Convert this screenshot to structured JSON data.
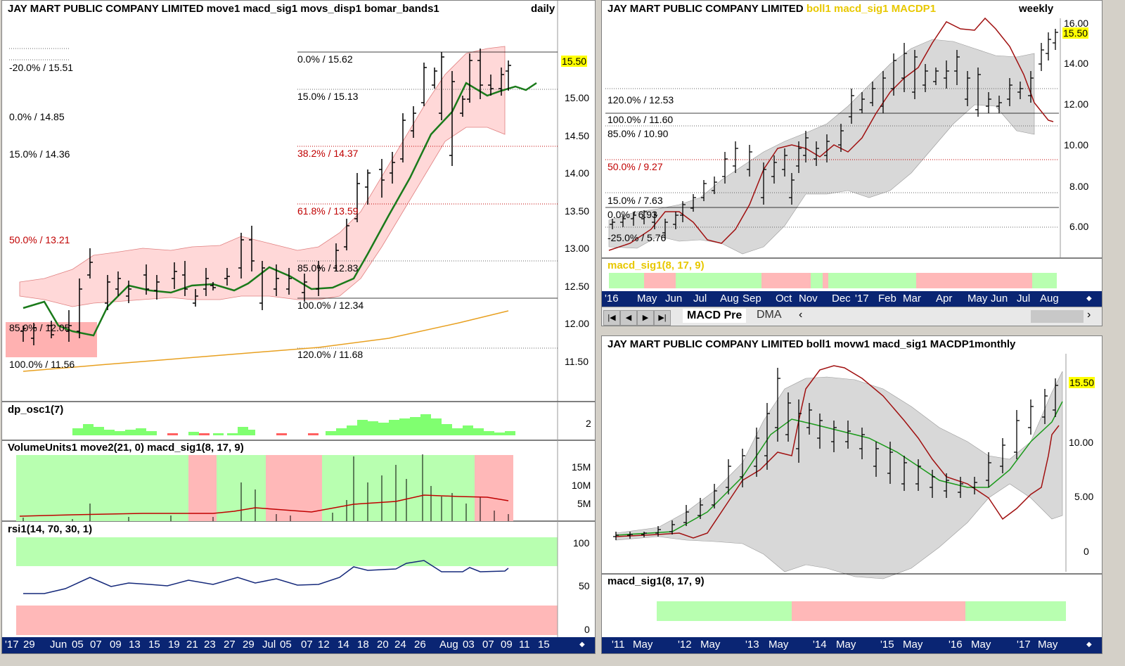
{
  "daily": {
    "title": "JAY MART PUBLIC COMPANY LIMITED move1 macd_sig1 movs_disp1 bomar_bands1",
    "timeframe": "daily",
    "current_price": "15.50",
    "price_ticks": [
      "15.00",
      "14.50",
      "14.00",
      "13.50",
      "13.00",
      "12.50",
      "12.00",
      "11.50"
    ],
    "fib_labels": [
      {
        "text": "-20.0% / 15.51",
        "color": "black"
      },
      {
        "text": "0.0% / 14.85",
        "color": "black"
      },
      {
        "text": "15.0% / 14.36",
        "color": "black"
      },
      {
        "text": "50.0% / 13.21",
        "color": "red"
      },
      {
        "text": "85.0% / 12.05",
        "color": "black"
      },
      {
        "text": "100.0% / 11.56",
        "color": "black"
      },
      {
        "text": "0.0% / 15.62",
        "color": "black"
      },
      {
        "text": "15.0% / 15.13",
        "color": "black"
      },
      {
        "text": "38.2% / 14.37",
        "color": "red"
      },
      {
        "text": "61.8% / 13.59",
        "color": "red"
      },
      {
        "text": "85.0% / 12.83",
        "color": "black"
      },
      {
        "text": "100.0% / 12.34",
        "color": "black"
      },
      {
        "text": "120.0% / 11.68",
        "color": "black"
      }
    ],
    "osc_label": "dp_osc1(7)",
    "osc_tick": "2",
    "volume_label": "VolumeUnits1 move2(21, 0) macd_sig1(8, 17, 9)",
    "volume_ticks": [
      "15M",
      "10M",
      "5M"
    ],
    "rsi_label": "rsi1(14, 70, 30, 1)",
    "rsi_ticks": [
      "100",
      "50",
      "0"
    ],
    "date_axis": [
      "'17",
      "29",
      "Jun",
      "05",
      "07",
      "09",
      "13",
      "15",
      "19",
      "21",
      "23",
      "27",
      "29",
      "Jul",
      "05",
      "07",
      "12",
      "14",
      "18",
      "20",
      "24",
      "26",
      "Aug",
      "03",
      "07",
      "09",
      "11",
      "15"
    ],
    "scroll_icon": "scroll-arrow-icon"
  },
  "weekly": {
    "title_main": "JAY MART PUBLIC COMPANY LIMITED",
    "title_yellow": "boll1 macd_sig1 MACDP1",
    "timeframe": "weekly",
    "current_price": "15.50",
    "price_ticks": [
      "16.00",
      "14.00",
      "12.00",
      "10.00",
      "8.00",
      "6.00"
    ],
    "fib_labels": [
      {
        "text": "120.0% / 12.53",
        "color": "black"
      },
      {
        "text": "100.0% / 11.60",
        "color": "black"
      },
      {
        "text": "85.0% / 10.90",
        "color": "black"
      },
      {
        "text": "50.0% / 9.27",
        "color": "red"
      },
      {
        "text": "15.0% / 7.63",
        "color": "black"
      },
      {
        "text": "0.0% / 6.93",
        "color": "black"
      },
      {
        "text": "-25.0% / 5.76",
        "color": "black"
      }
    ],
    "macd_label": "macd_sig1(8, 17, 9)",
    "date_axis": [
      "'16",
      "May",
      "Jun",
      "Jul",
      "Aug",
      "Sep",
      "Oct",
      "Nov",
      "Dec",
      "'17",
      "Feb",
      "Mar",
      "Apr",
      "May",
      "Jun",
      "Jul",
      "Aug"
    ],
    "tabs": [
      "MACD Pre",
      "DMA"
    ],
    "nav_buttons": [
      "first-icon",
      "prev-icon",
      "next-icon",
      "last-icon"
    ],
    "scroll_left": "‹"
  },
  "monthly": {
    "title": "JAY MART PUBLIC COMPANY LIMITED boll1 movw1 macd_sig1 MACDP1monthly",
    "current_price": "15.50",
    "price_ticks": [
      "10.00",
      "5.00",
      "0"
    ],
    "macd_label": "macd_sig1(8, 17, 9)",
    "date_axis": [
      "'11",
      "May",
      "'12",
      "May",
      "'13",
      "May",
      "'14",
      "May",
      "'15",
      "May",
      "'16",
      "May",
      "'17",
      "May"
    ]
  },
  "colors": {
    "accent_green": "#1a7a1a",
    "band_fill": "#ffd8d8",
    "up_zone": "#b8ffb0",
    "down_zone": "#ffb8b8",
    "axis_bg": "#0a2573",
    "ma_orange": "#e8a020",
    "macd_red": "#c00000",
    "gray_band": "#d8d8d8"
  }
}
